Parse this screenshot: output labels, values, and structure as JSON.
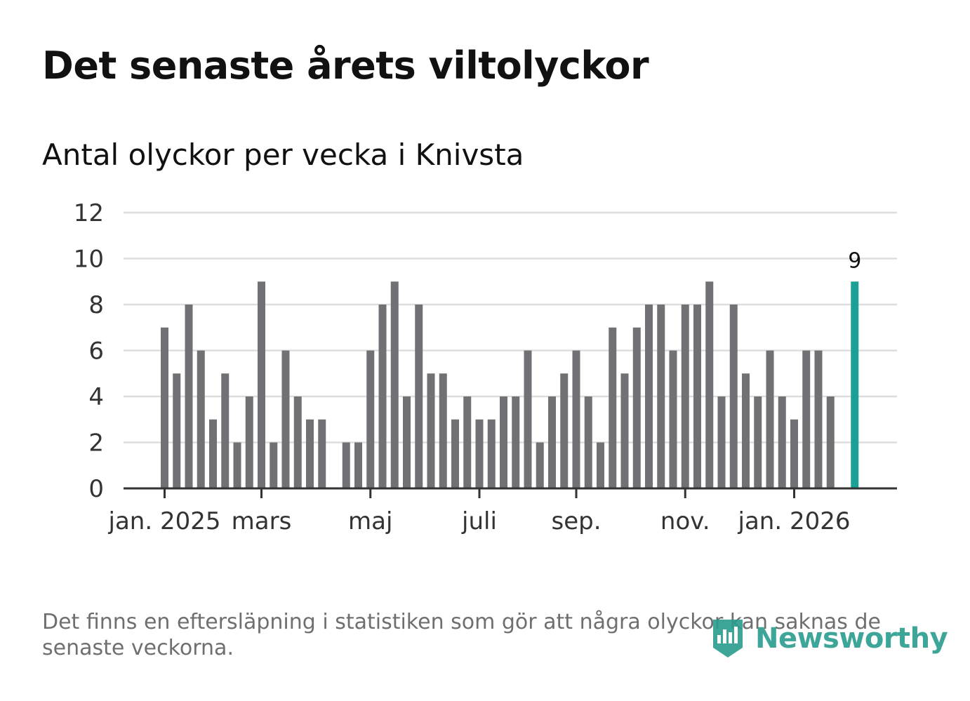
{
  "header": {
    "title": "Det senaste årets viltolyckor",
    "subtitle": "Antal olyckor per vecka i Knivsta"
  },
  "footer": {
    "note": "Det finns en eftersläpning i statistiken som gör att några olyckor kan saknas de senaste veckorna.",
    "brand": "Newsworthy"
  },
  "colors": {
    "bar": "#717075",
    "highlight": "#1aa095",
    "grid": "#dddddd",
    "axis": "#333333",
    "brand": "#2a9d8f"
  },
  "chart_data": {
    "type": "bar",
    "title": "Antal olyckor per vecka i Knivsta",
    "xlabel": "",
    "ylabel": "",
    "ylim": [
      0,
      12
    ],
    "yticks": [
      0,
      2,
      4,
      6,
      8,
      10,
      12
    ],
    "grid": true,
    "xtick_labels": [
      {
        "label": "jan. 2025",
        "week_index": 0
      },
      {
        "label": "mars",
        "week_index": 8
      },
      {
        "label": "maj",
        "week_index": 17
      },
      {
        "label": "juli",
        "week_index": 26
      },
      {
        "label": "sep.",
        "week_index": 34
      },
      {
        "label": "nov.",
        "week_index": 43
      },
      {
        "label": "jan. 2026",
        "week_index": 52
      }
    ],
    "values": [
      7,
      5,
      8,
      6,
      3,
      5,
      2,
      4,
      9,
      2,
      6,
      4,
      3,
      3,
      0,
      2,
      2,
      6,
      8,
      9,
      4,
      8,
      5,
      5,
      3,
      4,
      3,
      3,
      4,
      4,
      6,
      2,
      4,
      5,
      6,
      4,
      2,
      7,
      5,
      7,
      8,
      8,
      6,
      8,
      8,
      9,
      4,
      8,
      5,
      4,
      6,
      4,
      3,
      6,
      6,
      4,
      0,
      9
    ],
    "highlight_index": 57,
    "highlight_label": "9"
  }
}
